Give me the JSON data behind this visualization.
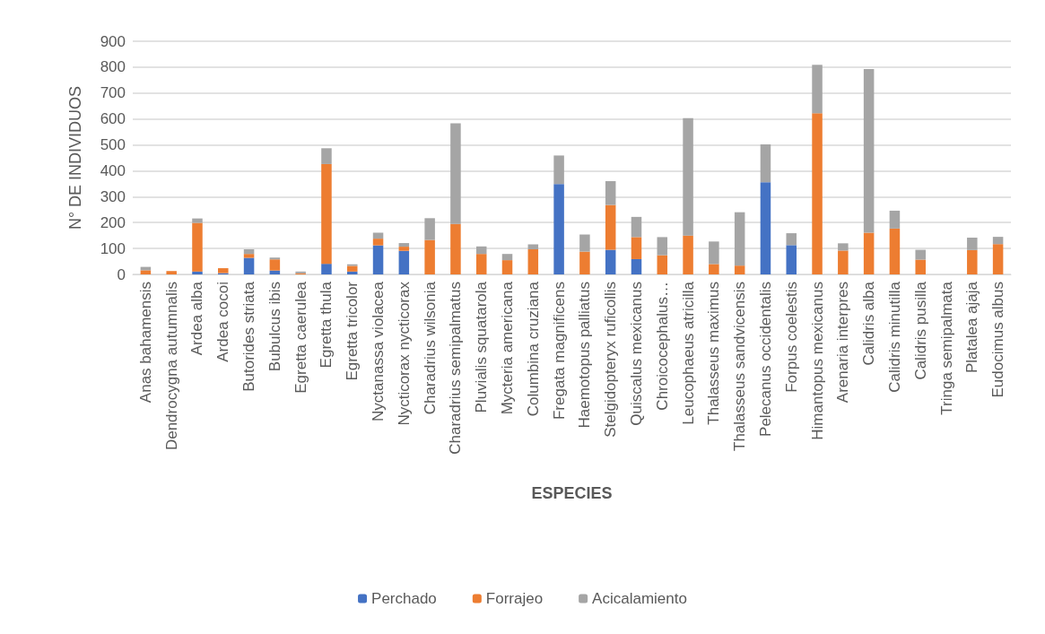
{
  "chart_data": {
    "type": "bar",
    "stacked": true,
    "xlabel": "ESPECIES",
    "ylabel": "N° DE INDIVIDUOS",
    "categories": [
      "Anas bahamensis",
      "Dendrocygna autumnalis",
      "Ardea alba",
      "Ardea cocoi",
      "Butorides striata",
      "Bubulcus ibis",
      "Egretta caerulea",
      "Egretta thula",
      "Egretta tricolor",
      "Nyctanassa violacea",
      "Nycticorax nycticorax",
      "Charadrius wilsonia",
      "Charadrius semipalmatus",
      "Pluvialis squatarola",
      "Mycteria americana",
      "Columbina cruziana",
      "Fregata magnificens",
      "Haemotopus palliatus",
      "Stelgidopteryx ruficollis",
      "Quiscalus mexicanus",
      "Chroicocephalus…",
      "Leucophaeus atricilla",
      "Thalasseus maximus",
      "Thalasseus sandvicensis",
      "Pelecanus occidentalis",
      "Forpus coelestis",
      "Himantopus mexicanus",
      "Arenaria interpres",
      "Calidris alba",
      "Calidris minutilla",
      "Calidris pusilla",
      "Tringa semipalmata",
      "Platalea ajaja",
      "Eudocimus albus"
    ],
    "series": [
      {
        "name": "Perchado",
        "color": "#4472c4",
        "values": [
          0,
          0,
          11,
          5,
          64,
          15,
          0,
          41,
          11,
          112,
          91,
          0,
          0,
          0,
          0,
          0,
          349,
          0,
          95,
          59,
          0,
          0,
          0,
          0,
          356,
          113,
          0,
          0,
          0,
          0,
          0,
          0,
          0,
          0
        ]
      },
      {
        "name": "Forrajeo",
        "color": "#ed7d31",
        "values": [
          16,
          13,
          188,
          19,
          15,
          43,
          4,
          385,
          22,
          26,
          16,
          133,
          195,
          79,
          55,
          97,
          0,
          88,
          173,
          85,
          74,
          150,
          40,
          34,
          0,
          0,
          622,
          92,
          161,
          177,
          57,
          0,
          94,
          117
        ]
      },
      {
        "name": "Acicalamiento",
        "color": "#a5a5a5",
        "values": [
          13,
          0,
          17,
          0,
          18,
          7,
          7,
          61,
          6,
          23,
          14,
          84,
          388,
          29,
          24,
          19,
          110,
          66,
          92,
          78,
          70,
          453,
          87,
          206,
          146,
          46,
          187,
          28,
          632,
          69,
          38,
          0,
          48,
          28
        ]
      }
    ],
    "ylim": [
      0,
      900
    ],
    "yticks": [
      0,
      100,
      200,
      300,
      400,
      500,
      600,
      700,
      800,
      900
    ],
    "grid": "y",
    "legend": "bottom"
  }
}
